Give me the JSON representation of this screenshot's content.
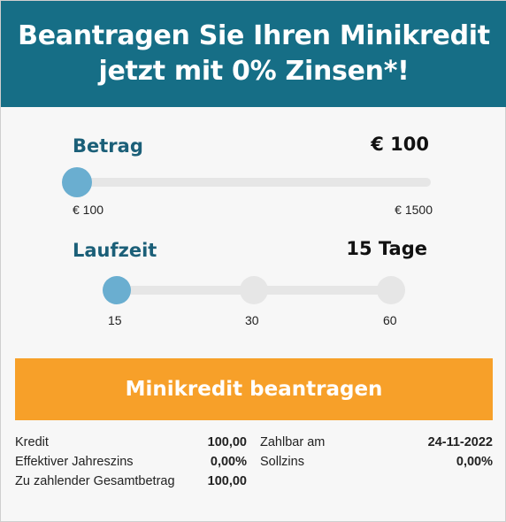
{
  "header": {
    "title_line1": "Beantragen Sie Ihren Minikredit",
    "title_line2": "jetzt mit 0% Zinsen*!"
  },
  "amount": {
    "label": "Betrag",
    "value_display": "€ 100",
    "min_label": "€ 100",
    "max_label": "€ 1500",
    "min": 100,
    "max": 1500,
    "value": 100
  },
  "term": {
    "label": "Laufzeit",
    "value_display": "15 Tage",
    "options": [
      "15",
      "30",
      "60"
    ],
    "selected_index": 0
  },
  "cta": {
    "label": "Minikredit beantragen"
  },
  "summary": {
    "left": [
      {
        "label": "Kredit",
        "value": "100,00"
      },
      {
        "label": "Effektiver Jahreszins",
        "value": "0,00%"
      },
      {
        "label": "Zu zahlender Gesamtbetrag",
        "value": "100,00"
      }
    ],
    "right": [
      {
        "label": "Zahlbar am",
        "value": "24-11-2022"
      },
      {
        "label": "Sollzins",
        "value": "0,00%"
      }
    ]
  },
  "colors": {
    "header_bg": "#166e86",
    "label_color": "#1b5f78",
    "slider_accent": "#6aaed0",
    "cta_bg": "#f7a029"
  }
}
